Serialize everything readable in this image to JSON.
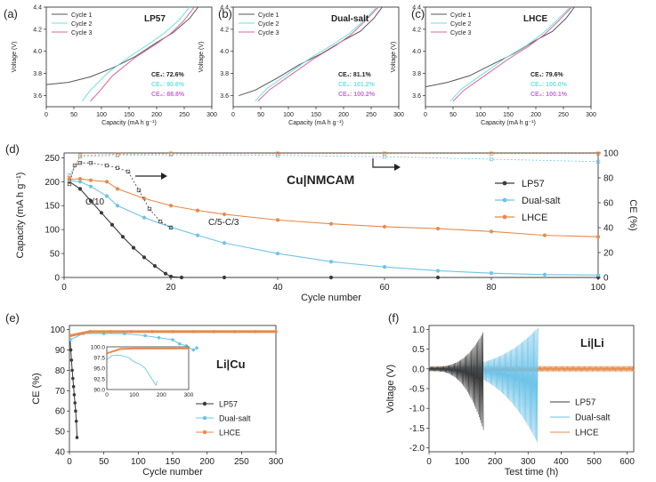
{
  "figure": {
    "panel_labels": {
      "a": "(a)",
      "b": "(b)",
      "c": "(c)",
      "d": "(d)",
      "e": "(e)",
      "f": "(f)"
    }
  },
  "colors": {
    "lp57": "#3a3a3a",
    "dual": "#6fc3e8",
    "lhce": "#e8894a",
    "cycle1": "#555555",
    "cycle2": "#6fe0dd",
    "cycle3": "#d9649a"
  },
  "chart_data": [
    {
      "id": "a",
      "type": "line",
      "title": "LP57",
      "xlabel": "Capacity (mA h g⁻¹)",
      "ylabel": "Voltage (V)",
      "xlim": [
        0,
        300
      ],
      "ylim": [
        3.5,
        4.4
      ],
      "xticks": [
        "0",
        "50",
        "100",
        "150",
        "200",
        "250",
        "300"
      ],
      "yticks": [
        "3.6",
        "3.8",
        "4.0",
        "4.2",
        "4.4"
      ],
      "legend": [
        "Cycle 1",
        "Cycle 2",
        "Cycle 3"
      ],
      "annotations": [
        "CE₁: 72.6%",
        "CE₂: 90.6%",
        "CE₃: 88.8%"
      ],
      "series": [
        {
          "name": "Cycle 1",
          "x": [
            0,
            40,
            80,
            120,
            160,
            200,
            230,
            260,
            275
          ],
          "y": [
            3.7,
            3.72,
            3.77,
            3.85,
            3.95,
            4.08,
            4.17,
            4.3,
            4.4
          ]
        },
        {
          "name": "Cycle 2",
          "x": [
            65,
            80,
            110,
            150,
            190,
            215,
            240,
            260
          ],
          "y": [
            3.55,
            3.65,
            3.8,
            3.95,
            4.08,
            4.17,
            4.28,
            4.4
          ]
        },
        {
          "name": "Cycle 3",
          "x": [
            80,
            95,
            120,
            160,
            200,
            225,
            248,
            268
          ],
          "y": [
            3.55,
            3.63,
            3.78,
            3.94,
            4.07,
            4.16,
            4.27,
            4.4
          ]
        }
      ]
    },
    {
      "id": "b",
      "type": "line",
      "title": "Dual-salt",
      "xlabel": "Capacity (mA h g⁻¹)",
      "ylabel": "Voltage (V)",
      "xlim": [
        0,
        300
      ],
      "ylim": [
        3.5,
        4.4
      ],
      "xticks": [
        "0",
        "50",
        "100",
        "150",
        "200",
        "250",
        "300"
      ],
      "yticks": [
        "3.6",
        "3.8",
        "4.0",
        "4.2",
        "4.4"
      ],
      "legend": [
        "Cycle 1",
        "Cycle 2",
        "Cycle 3"
      ],
      "annotations": [
        "CE₁: 81.1%",
        "CE₂: 101.2%",
        "CE₃: 100.2%"
      ],
      "series": [
        {
          "name": "Cycle 1",
          "x": [
            10,
            40,
            80,
            120,
            160,
            200,
            230,
            255,
            270
          ],
          "y": [
            3.6,
            3.65,
            3.76,
            3.88,
            3.98,
            4.1,
            4.18,
            4.3,
            4.4
          ]
        },
        {
          "name": "Cycle 2",
          "x": [
            40,
            60,
            100,
            140,
            180,
            210,
            235,
            260
          ],
          "y": [
            3.55,
            3.66,
            3.8,
            3.94,
            4.06,
            4.16,
            4.27,
            4.4
          ]
        },
        {
          "name": "Cycle 3",
          "x": [
            45,
            65,
            105,
            145,
            185,
            213,
            238,
            263
          ],
          "y": [
            3.55,
            3.65,
            3.79,
            3.93,
            4.05,
            4.15,
            4.27,
            4.4
          ]
        }
      ]
    },
    {
      "id": "c",
      "type": "line",
      "title": "LHCE",
      "xlabel": "Capacity (mA h g⁻¹)",
      "ylabel": "Voltage (V)",
      "xlim": [
        0,
        300
      ],
      "ylim": [
        3.5,
        4.4
      ],
      "xticks": [
        "0",
        "50",
        "100",
        "150",
        "200",
        "250",
        "300"
      ],
      "yticks": [
        "3.6",
        "3.8",
        "4.0",
        "4.2",
        "4.4"
      ],
      "legend": [
        "Cycle 1",
        "Cycle 2",
        "Cycle 3"
      ],
      "annotations": [
        "CE₁: 79.6%",
        "CE₂: 100.0%",
        "CE₃: 100.1%"
      ],
      "series": [
        {
          "name": "Cycle 1",
          "x": [
            0,
            40,
            80,
            120,
            160,
            200,
            230,
            255,
            270
          ],
          "y": [
            3.68,
            3.72,
            3.78,
            3.88,
            3.98,
            4.1,
            4.18,
            4.3,
            4.4
          ]
        },
        {
          "name": "Cycle 2",
          "x": [
            45,
            65,
            105,
            145,
            185,
            212,
            236,
            262
          ],
          "y": [
            3.55,
            3.66,
            3.8,
            3.94,
            4.06,
            4.16,
            4.27,
            4.4
          ]
        },
        {
          "name": "Cycle 3",
          "x": [
            50,
            70,
            110,
            150,
            188,
            215,
            240,
            265
          ],
          "y": [
            3.55,
            3.65,
            3.79,
            3.93,
            4.05,
            4.15,
            4.27,
            4.4
          ]
        }
      ]
    },
    {
      "id": "d",
      "type": "scatter",
      "title": "Cu|NMCAM",
      "xlabel": "Cycle number",
      "ylabel": "Capacity (mA h g⁻¹)",
      "y2label": "CE (%)",
      "xlim": [
        0,
        100
      ],
      "ylim": [
        0,
        260
      ],
      "y2lim": [
        0,
        100
      ],
      "xticks": [
        "0",
        "20",
        "40",
        "60",
        "80",
        "100"
      ],
      "yticks": [
        "0",
        "50",
        "100",
        "150",
        "200",
        "250"
      ],
      "y2ticks": [
        "0",
        "20",
        "40",
        "60",
        "80",
        "100"
      ],
      "legend": [
        "LP57",
        "Dual-salt",
        "LHCE"
      ],
      "annotations": [
        "C/10",
        "C/5-C/3"
      ],
      "series": [
        {
          "name": "LP57",
          "axis": "left",
          "x": [
            1,
            3,
            5,
            7,
            9,
            11,
            13,
            15,
            17,
            19,
            20,
            22,
            30,
            50,
            70,
            100
          ],
          "y": [
            200,
            185,
            160,
            135,
            110,
            85,
            62,
            42,
            24,
            8,
            2,
            0,
            0,
            0,
            0,
            0
          ]
        },
        {
          "name": "Dual-salt",
          "axis": "left",
          "x": [
            1,
            3,
            5,
            8,
            10,
            15,
            20,
            25,
            30,
            40,
            50,
            60,
            70,
            80,
            90,
            100
          ],
          "y": [
            202,
            200,
            190,
            170,
            150,
            125,
            105,
            88,
            72,
            50,
            33,
            22,
            14,
            9,
            6,
            5
          ]
        },
        {
          "name": "LHCE",
          "axis": "left",
          "x": [
            1,
            3,
            5,
            8,
            10,
            15,
            20,
            25,
            30,
            40,
            50,
            60,
            70,
            80,
            90,
            100
          ],
          "y": [
            205,
            206,
            203,
            200,
            185,
            165,
            150,
            140,
            132,
            120,
            112,
            106,
            102,
            96,
            88,
            85
          ]
        },
        {
          "name": "LP57 CE",
          "axis": "right",
          "x": [
            1,
            2,
            3,
            5,
            8,
            10,
            12,
            14,
            16,
            18,
            20
          ],
          "y": [
            75,
            90,
            92,
            92,
            90,
            88,
            85,
            70,
            55,
            45,
            40
          ]
        },
        {
          "name": "Dual-salt CE",
          "axis": "right",
          "x": [
            1,
            3,
            10,
            20,
            40,
            60,
            80,
            100
          ],
          "y": [
            82,
            97,
            98,
            98.5,
            98,
            97,
            95,
            93
          ]
        },
        {
          "name": "LHCE CE",
          "axis": "right",
          "x": [
            1,
            3,
            10,
            20,
            40,
            60,
            80,
            100
          ],
          "y": [
            80,
            98,
            99,
            99.5,
            99.5,
            99.5,
            99.5,
            99.5
          ]
        }
      ]
    },
    {
      "id": "e",
      "type": "scatter",
      "title": "Li|Cu",
      "xlabel": "Cycle number",
      "ylabel": "CE (%)",
      "xlim": [
        0,
        300
      ],
      "ylim": [
        40,
        102
      ],
      "xticks": [
        "0",
        "50",
        "100",
        "150",
        "200",
        "250",
        "300"
      ],
      "yticks": [
        "40",
        "50",
        "60",
        "70",
        "80",
        "90",
        "100"
      ],
      "legend": [
        "LP57",
        "Dual-salt",
        "LHCE"
      ],
      "series": [
        {
          "name": "LP57",
          "x": [
            1,
            2,
            3,
            4,
            5,
            6,
            7,
            8,
            9,
            10,
            11
          ],
          "y": [
            95,
            90,
            85,
            80,
            76,
            72,
            68,
            64,
            60,
            55,
            47
          ]
        },
        {
          "name": "Dual-salt",
          "x": [
            1,
            20,
            50,
            80,
            110,
            130,
            150,
            160,
            170,
            180,
            185
          ],
          "y": [
            95,
            98,
            98,
            98,
            97,
            96,
            95,
            93,
            92,
            90,
            91
          ]
        },
        {
          "name": "LHCE",
          "x": [
            1,
            30,
            60,
            90,
            120,
            150,
            180,
            210,
            240,
            270,
            300
          ],
          "y": [
            97,
            99,
            99,
            99,
            99,
            99,
            99,
            99,
            99,
            99,
            99
          ]
        }
      ],
      "inset": {
        "xlim": [
          0,
          300
        ],
        "ylim": [
          90,
          100
        ],
        "xticks": [
          "0",
          "100",
          "200",
          "300"
        ],
        "yticks": [
          "90.0",
          "92.5",
          "95.0",
          "97.5",
          "100.0"
        ],
        "series": [
          {
            "name": "Dual-salt",
            "x": [
              1,
              20,
              50,
              80,
              100,
              120,
              140,
              150,
              160,
              170,
              180,
              185
            ],
            "y": [
              97,
              98,
              98,
              97.5,
              96.5,
              96,
              95,
              94,
              93,
              92,
              91,
              92
            ]
          },
          {
            "name": "LHCE",
            "x": [
              1,
              50,
              100,
              150,
              200,
              250,
              300
            ],
            "y": [
              98.5,
              99.5,
              99.6,
              99.6,
              99.6,
              99.6,
              99.6
            ]
          }
        ]
      }
    },
    {
      "id": "f",
      "type": "line",
      "title": "Li|Li",
      "xlabel": "Test time (h)",
      "ylabel": "Voltage (V)",
      "xlim": [
        0,
        620
      ],
      "ylim": [
        -2.1,
        1.1
      ],
      "xticks": [
        "0",
        "100",
        "200",
        "300",
        "400",
        "500",
        "600"
      ],
      "yticks": [
        "-2.0",
        "-1.5",
        "-1.0",
        "-0.5",
        "0.0",
        "0.5",
        "1.0"
      ],
      "legend": [
        "LP57",
        "Dual-salt",
        "LHCE"
      ],
      "series": [
        {
          "name": "LP57",
          "t_end": 165,
          "amp_start": 0.05,
          "amp_end_pos": 0.95,
          "amp_end_neg": -1.55
        },
        {
          "name": "Dual-salt",
          "t_end": 330,
          "amp_start": 0.05,
          "amp_end_pos": 1.05,
          "amp_end_neg": -1.9
        },
        {
          "name": "LHCE",
          "t_end": 620,
          "amp_start": 0.07,
          "amp_end_pos": 0.07,
          "amp_end_neg": -0.07
        }
      ]
    }
  ]
}
